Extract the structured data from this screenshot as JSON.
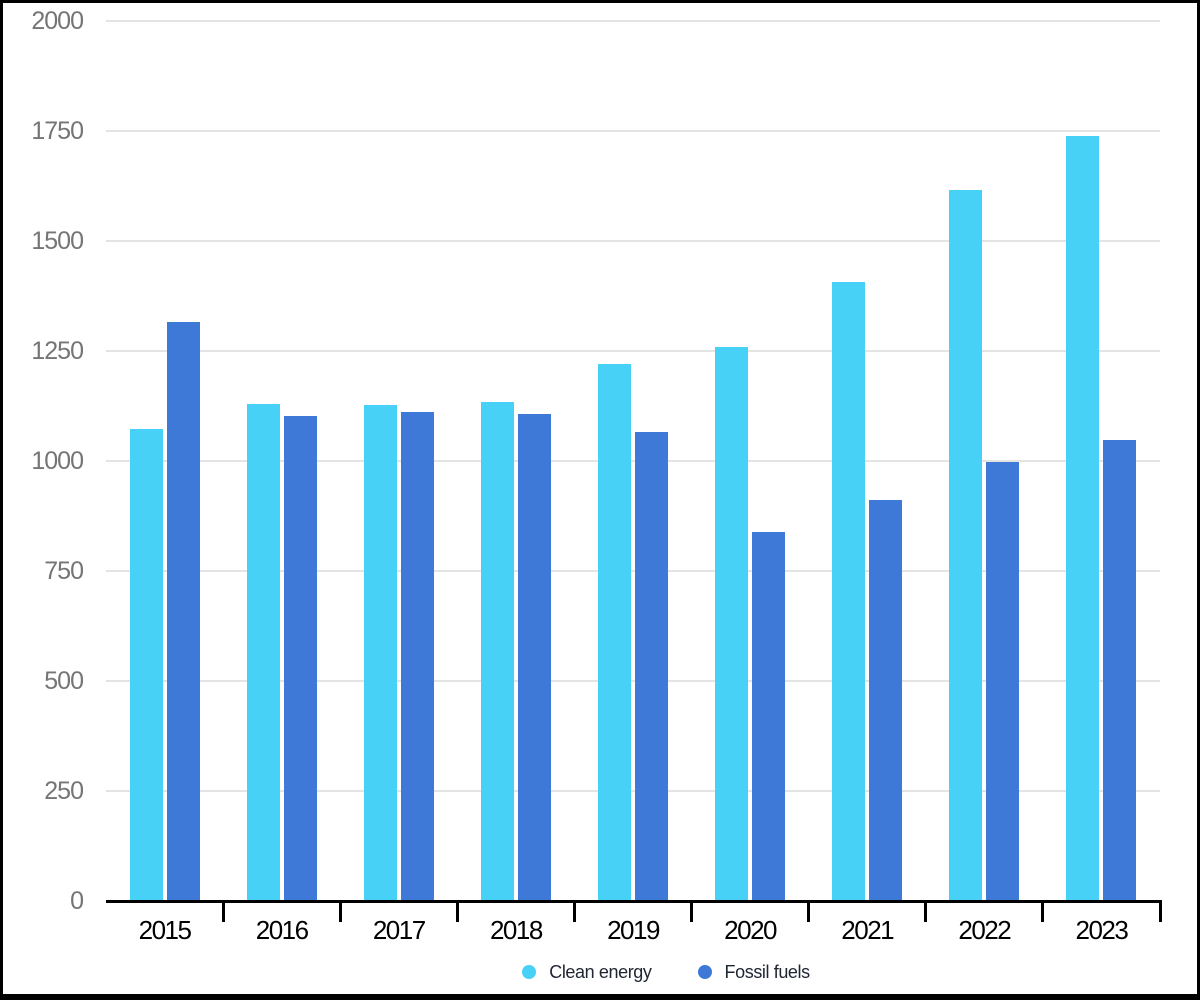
{
  "chart_data": {
    "type": "bar",
    "categories": [
      "2015",
      "2016",
      "2017",
      "2018",
      "2019",
      "2020",
      "2021",
      "2022",
      "2023"
    ],
    "series": [
      {
        "name": "Clean energy",
        "color": "#48d1f6",
        "values": [
          1072,
          1130,
          1127,
          1134,
          1221,
          1258,
          1407,
          1616,
          1739
        ]
      },
      {
        "name": "Fossil fuels",
        "color": "#3e79d8",
        "values": [
          1316,
          1102,
          1111,
          1107,
          1065,
          839,
          911,
          998,
          1048
        ]
      }
    ],
    "ylim": [
      0,
      2000
    ],
    "yticks": [
      0,
      250,
      500,
      750,
      1000,
      1250,
      1500,
      1750,
      2000
    ],
    "grid": "horizontal",
    "legend_position": "bottom-center",
    "colors": {
      "gridline": "#e4e4e4",
      "axis_line": "#000000",
      "y_tick_label": "#757575",
      "x_tick_label": "#000000",
      "legend_text": "#202733",
      "background": "#ffffff",
      "frame_border": "#000000"
    }
  }
}
